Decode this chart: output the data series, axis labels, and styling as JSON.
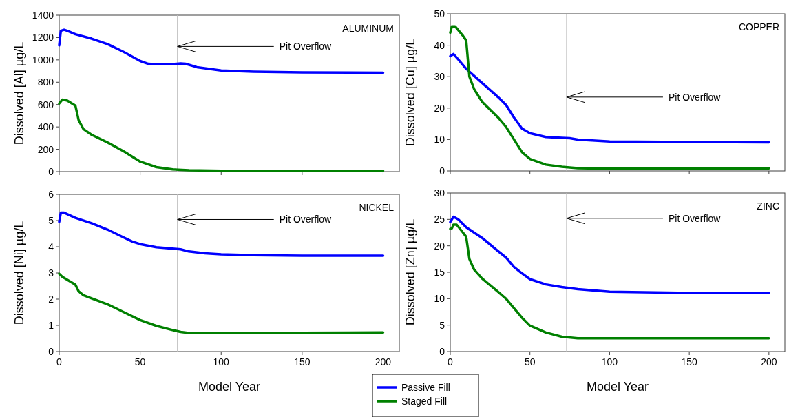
{
  "chart_data": [
    {
      "type": "line",
      "title": "ALUMINUM",
      "ylabel": "Dissolved [Al] µg/L",
      "xlim": [
        0,
        210
      ],
      "xticks": [
        0,
        50,
        100,
        150,
        200
      ],
      "ylim": [
        0,
        1400
      ],
      "yticks": [
        0,
        200,
        400,
        600,
        800,
        1000,
        1200,
        1400
      ],
      "tick_labels": "y",
      "grid": false,
      "legend": false,
      "ref_lines": [
        {
          "axis": "x",
          "value": 73,
          "color": "#c0c0c0",
          "label": "Pit Overflow"
        }
      ],
      "series": [
        {
          "color": "#0000ff",
          "x": [
            0,
            1,
            3,
            5,
            10,
            20,
            30,
            40,
            50,
            55,
            60,
            70,
            75,
            78,
            85,
            100,
            120,
            150,
            200
          ],
          "values": [
            1130,
            1260,
            1270,
            1260,
            1230,
            1190,
            1140,
            1070,
            990,
            965,
            960,
            962,
            968,
            965,
            935,
            905,
            895,
            888,
            885
          ]
        },
        {
          "color": "#008000",
          "x": [
            0,
            2,
            5,
            10,
            12,
            15,
            20,
            30,
            40,
            50,
            60,
            70,
            80,
            100,
            150,
            200
          ],
          "values": [
            610,
            645,
            635,
            590,
            460,
            380,
            330,
            260,
            180,
            90,
            40,
            20,
            12,
            8,
            8,
            8
          ]
        }
      ]
    },
    {
      "type": "line",
      "title": "COPPER",
      "ylabel": "Dissolved [Cu] µg/L",
      "xlim": [
        0,
        210
      ],
      "xticks": [
        0,
        50,
        100,
        150,
        200
      ],
      "ylim": [
        0,
        50
      ],
      "yticks": [
        0,
        10,
        20,
        30,
        40,
        50
      ],
      "tick_labels": "y",
      "grid": false,
      "legend": false,
      "ref_lines": [
        {
          "axis": "x",
          "value": 73,
          "color": "#c0c0c0",
          "label": "Pit Overflow"
        }
      ],
      "series": [
        {
          "color": "#0000ff",
          "x": [
            0,
            2,
            5,
            10,
            20,
            30,
            35,
            40,
            45,
            50,
            60,
            70,
            75,
            80,
            100,
            150,
            200
          ],
          "values": [
            36.5,
            37.2,
            35.5,
            32.5,
            28,
            23.5,
            21,
            17,
            13.5,
            12,
            10.8,
            10.5,
            10.4,
            10,
            9.4,
            9.2,
            9.1
          ]
        },
        {
          "color": "#008000",
          "x": [
            0,
            1,
            3,
            8,
            10,
            12,
            15,
            20,
            30,
            35,
            40,
            45,
            50,
            60,
            70,
            80,
            100,
            150,
            200
          ],
          "values": [
            44,
            46,
            46,
            43,
            41.5,
            30,
            26,
            22,
            17,
            14,
            10,
            6,
            3.8,
            2,
            1.3,
            0.9,
            0.7,
            0.7,
            0.8
          ]
        }
      ]
    },
    {
      "type": "line",
      "title": "NICKEL",
      "ylabel": "Dissolved [Ni] µg/L",
      "xlabel": "Model Year",
      "xlim": [
        0,
        210
      ],
      "xticks": [
        0,
        50,
        100,
        150,
        200
      ],
      "ylim": [
        0,
        6
      ],
      "yticks": [
        0,
        1,
        2,
        3,
        4,
        5,
        6
      ],
      "grid": false,
      "legend": false,
      "ref_lines": [
        {
          "axis": "x",
          "value": 73,
          "color": "#c0c0c0",
          "label": "Pit Overflow"
        }
      ],
      "series": [
        {
          "color": "#0000ff",
          "x": [
            0,
            1,
            3,
            10,
            20,
            30,
            35,
            40,
            45,
            50,
            60,
            70,
            75,
            80,
            90,
            100,
            120,
            150,
            200
          ],
          "values": [
            4.95,
            5.3,
            5.3,
            5.1,
            4.9,
            4.65,
            4.5,
            4.35,
            4.2,
            4.1,
            3.98,
            3.93,
            3.9,
            3.82,
            3.75,
            3.71,
            3.68,
            3.66,
            3.66
          ]
        },
        {
          "color": "#008000",
          "x": [
            0,
            2,
            10,
            12,
            15,
            20,
            30,
            35,
            40,
            50,
            60,
            70,
            75,
            80,
            100,
            150,
            200
          ],
          "values": [
            2.97,
            2.85,
            2.55,
            2.3,
            2.15,
            2.03,
            1.8,
            1.65,
            1.5,
            1.2,
            0.98,
            0.82,
            0.75,
            0.71,
            0.72,
            0.72,
            0.73
          ]
        }
      ]
    },
    {
      "type": "line",
      "title": "ZINC",
      "ylabel": "Dissolved [Zn] µg/L",
      "xlabel": "Model Year",
      "xlim": [
        0,
        210
      ],
      "xticks": [
        0,
        50,
        100,
        150,
        200
      ],
      "ylim": [
        0,
        30
      ],
      "yticks": [
        0,
        5,
        10,
        15,
        20,
        25,
        30
      ],
      "grid": false,
      "legend": "bottom left",
      "ref_lines": [
        {
          "axis": "x",
          "value": 73,
          "color": "#c0c0c0",
          "label": "Pit Overflow"
        }
      ],
      "series": [
        {
          "name": "Passive Fill",
          "color": "#0000ff",
          "x": [
            0,
            2,
            5,
            10,
            20,
            30,
            35,
            40,
            45,
            50,
            60,
            70,
            75,
            80,
            100,
            150,
            200
          ],
          "values": [
            24.5,
            25.5,
            25,
            23.5,
            21.5,
            19,
            17.8,
            16,
            14.8,
            13.7,
            12.7,
            12.2,
            12,
            11.8,
            11.3,
            11.1,
            11.1
          ]
        },
        {
          "name": "Staged Fill",
          "color": "#008000",
          "x": [
            0,
            1,
            2,
            4,
            8,
            10,
            12,
            15,
            20,
            30,
            35,
            40,
            45,
            50,
            60,
            70,
            80,
            100,
            150,
            200
          ],
          "values": [
            23.2,
            23.3,
            24,
            24,
            22.5,
            21.7,
            17.5,
            15.5,
            13.8,
            11.3,
            10,
            8.2,
            6.4,
            4.9,
            3.6,
            2.8,
            2.5,
            2.5,
            2.5,
            2.5
          ]
        }
      ]
    }
  ]
}
